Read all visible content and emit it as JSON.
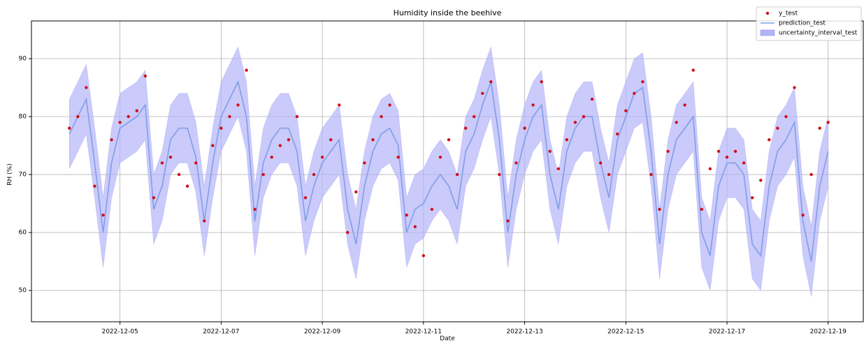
{
  "chart_data": {
    "type": "line",
    "title": "Humidity inside the beehive",
    "xlabel": "Date",
    "ylabel": "RH (%)",
    "x": [
      "2022-12-04 00:00",
      "2022-12-04 04:00",
      "2022-12-04 08:00",
      "2022-12-04 12:00",
      "2022-12-04 16:00",
      "2022-12-04 20:00",
      "2022-12-05 00:00",
      "2022-12-05 04:00",
      "2022-12-05 08:00",
      "2022-12-05 12:00",
      "2022-12-05 16:00",
      "2022-12-05 20:00",
      "2022-12-06 00:00",
      "2022-12-06 04:00",
      "2022-12-06 08:00",
      "2022-12-06 12:00",
      "2022-12-06 16:00",
      "2022-12-06 20:00",
      "2022-12-07 00:00",
      "2022-12-07 04:00",
      "2022-12-07 08:00",
      "2022-12-07 12:00",
      "2022-12-07 16:00",
      "2022-12-07 20:00",
      "2022-12-08 00:00",
      "2022-12-08 04:00",
      "2022-12-08 08:00",
      "2022-12-08 12:00",
      "2022-12-08 16:00",
      "2022-12-08 20:00",
      "2022-12-09 00:00",
      "2022-12-09 04:00",
      "2022-12-09 08:00",
      "2022-12-09 12:00",
      "2022-12-09 16:00",
      "2022-12-09 20:00",
      "2022-12-10 00:00",
      "2022-12-10 04:00",
      "2022-12-10 08:00",
      "2022-12-10 12:00",
      "2022-12-10 16:00",
      "2022-12-10 20:00",
      "2022-12-11 00:00",
      "2022-12-11 04:00",
      "2022-12-11 08:00",
      "2022-12-11 12:00",
      "2022-12-11 16:00",
      "2022-12-11 20:00",
      "2022-12-12 00:00",
      "2022-12-12 04:00",
      "2022-12-12 08:00",
      "2022-12-12 12:00",
      "2022-12-12 16:00",
      "2022-12-12 20:00",
      "2022-12-13 00:00",
      "2022-12-13 04:00",
      "2022-12-13 08:00",
      "2022-12-13 12:00",
      "2022-12-13 16:00",
      "2022-12-13 20:00",
      "2022-12-14 00:00",
      "2022-12-14 04:00",
      "2022-12-14 08:00",
      "2022-12-14 12:00",
      "2022-12-14 16:00",
      "2022-12-14 20:00",
      "2022-12-15 00:00",
      "2022-12-15 04:00",
      "2022-12-15 08:00",
      "2022-12-15 12:00",
      "2022-12-15 16:00",
      "2022-12-15 20:00",
      "2022-12-16 00:00",
      "2022-12-16 04:00",
      "2022-12-16 08:00",
      "2022-12-16 12:00",
      "2022-12-16 16:00",
      "2022-12-16 20:00",
      "2022-12-17 00:00",
      "2022-12-17 04:00",
      "2022-12-17 08:00",
      "2022-12-17 12:00",
      "2022-12-17 16:00",
      "2022-12-17 20:00",
      "2022-12-18 00:00",
      "2022-12-18 04:00",
      "2022-12-18 08:00",
      "2022-12-18 12:00",
      "2022-12-18 16:00",
      "2022-12-18 20:00",
      "2022-12-19 00:00"
    ],
    "series": [
      {
        "name": "y_test",
        "kind": "scatter",
        "color": "#d0101a",
        "values": [
          78,
          80,
          85,
          68,
          63,
          76,
          79,
          80,
          81,
          87,
          66,
          72,
          73,
          70,
          68,
          72,
          62,
          75,
          78,
          80,
          82,
          88,
          64,
          70,
          73,
          75,
          76,
          80,
          66,
          70,
          73,
          76,
          82,
          60,
          67,
          72,
          76,
          80,
          82,
          73,
          63,
          61,
          56,
          64,
          73,
          76,
          70,
          78,
          80,
          84,
          86,
          70,
          62,
          72,
          78,
          82,
          86,
          74,
          71,
          76,
          79,
          80,
          83,
          72,
          70,
          77,
          81,
          84,
          86,
          70,
          64,
          74,
          79,
          82,
          88,
          64,
          71,
          74,
          73,
          74,
          72,
          66,
          69,
          76,
          78,
          80,
          85,
          63,
          70,
          78,
          79
        ]
      },
      {
        "name": "prediction_test",
        "kind": "line",
        "color": "#7f9fe6",
        "values": [
          77,
          80,
          83,
          72,
          60,
          72,
          78,
          79,
          80,
          82,
          64,
          68,
          76,
          78,
          78,
          73,
          62,
          72,
          80,
          83,
          86,
          80,
          62,
          72,
          76,
          78,
          78,
          74,
          62,
          68,
          72,
          74,
          76,
          64,
          58,
          68,
          74,
          77,
          78,
          75,
          60,
          64,
          65,
          68,
          70,
          68,
          64,
          74,
          77,
          82,
          86,
          76,
          60,
          70,
          76,
          80,
          82,
          70,
          64,
          74,
          78,
          80,
          80,
          72,
          66,
          76,
          80,
          84,
          85,
          74,
          58,
          70,
          76,
          78,
          80,
          60,
          56,
          68,
          72,
          72,
          70,
          58,
          56,
          68,
          74,
          76,
          79,
          62,
          55,
          68,
          74
        ]
      },
      {
        "name": "uncertainty_interval_test",
        "kind": "band",
        "color": "#b4b4fa",
        "lower": [
          71,
          74,
          77,
          66,
          54,
          66,
          72,
          73,
          74,
          76,
          58,
          62,
          70,
          72,
          72,
          67,
          56,
          66,
          74,
          77,
          80,
          74,
          56,
          66,
          70,
          72,
          72,
          68,
          56,
          62,
          66,
          68,
          70,
          58,
          52,
          62,
          68,
          71,
          72,
          69,
          54,
          58,
          59,
          62,
          64,
          62,
          58,
          68,
          71,
          76,
          80,
          70,
          54,
          64,
          70,
          74,
          76,
          64,
          58,
          68,
          72,
          74,
          74,
          66,
          60,
          70,
          74,
          78,
          79,
          68,
          52,
          64,
          70,
          72,
          74,
          54,
          50,
          62,
          66,
          66,
          64,
          52,
          50,
          62,
          68,
          70,
          73,
          56,
          49,
          62,
          68
        ],
        "upper": [
          83,
          86,
          89,
          78,
          66,
          78,
          84,
          85,
          86,
          88,
          70,
          74,
          82,
          84,
          84,
          79,
          68,
          78,
          86,
          89,
          92,
          86,
          68,
          78,
          82,
          84,
          84,
          80,
          68,
          74,
          78,
          80,
          82,
          70,
          64,
          74,
          80,
          83,
          84,
          81,
          66,
          70,
          71,
          74,
          76,
          74,
          70,
          80,
          83,
          88,
          92,
          82,
          66,
          76,
          82,
          86,
          88,
          76,
          70,
          80,
          84,
          86,
          86,
          78,
          72,
          82,
          86,
          90,
          91,
          80,
          64,
          76,
          82,
          84,
          86,
          66,
          62,
          74,
          78,
          78,
          76,
          64,
          62,
          74,
          80,
          82,
          85,
          68,
          61,
          74,
          80
        ]
      }
    ],
    "xlim": [
      "2022-12-03 06:00",
      "2022-12-19 17:00"
    ],
    "xticks": [
      "2022-12-05",
      "2022-12-07",
      "2022-12-09",
      "2022-12-11",
      "2022-12-13",
      "2022-12-15",
      "2022-12-17",
      "2022-12-19"
    ],
    "ylim": [
      44.6,
      96.5
    ],
    "yticks": [
      50,
      60,
      70,
      80,
      90
    ],
    "grid": true,
    "legend": "upper right"
  }
}
